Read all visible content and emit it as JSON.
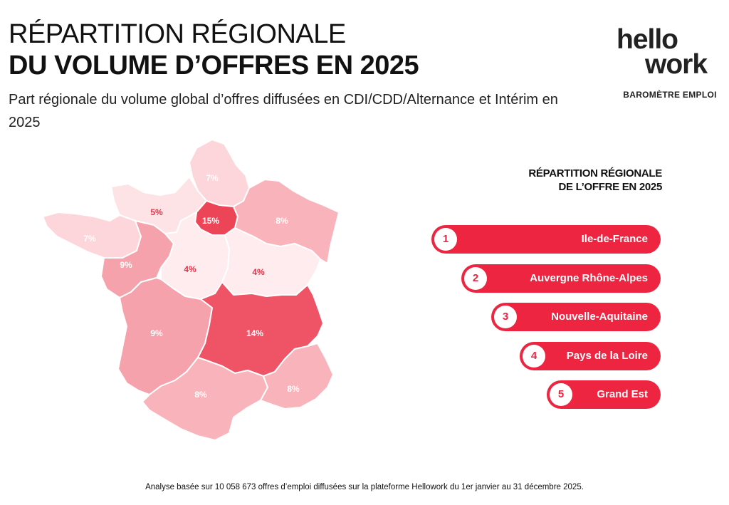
{
  "header": {
    "title_line1": "RÉPARTITION RÉGIONALE",
    "title_line2": "DU VOLUME D’OFFRES EN 2025",
    "subtitle": "Part régionale du volume global d’offres diffusées en CDI/CDD/Alternance et Intérim en 2025"
  },
  "brand": {
    "logo_line1": "hellо",
    "logo_line2": "wоrk",
    "tagline": "BAROMÈTRE EMPLOI"
  },
  "map": {
    "regions": [
      {
        "id": "hauts-de-france",
        "label": "7%",
        "value": 7,
        "color": "#fcd6da"
      },
      {
        "id": "normandie",
        "label": "5%",
        "value": 5,
        "color": "#fde3e6"
      },
      {
        "id": "ile-de-france",
        "label": "15%",
        "value": 15,
        "color": "#ec4557"
      },
      {
        "id": "grand-est",
        "label": "8%",
        "value": 8,
        "color": "#f9b3bb"
      },
      {
        "id": "bretagne",
        "label": "7%",
        "value": 7,
        "color": "#fcd6da"
      },
      {
        "id": "pays-de-la-loire",
        "label": "9%",
        "value": 9,
        "color": "#f6a2ac"
      },
      {
        "id": "centre-val-de-loire",
        "label": "4%",
        "value": 4,
        "color": "#feecee"
      },
      {
        "id": "bourgogne-franche-comte",
        "label": "4%",
        "value": 4,
        "color": "#feecee"
      },
      {
        "id": "nouvelle-aquitaine",
        "label": "9%",
        "value": 9,
        "color": "#f6a2ac"
      },
      {
        "id": "auvergne-rhone-alpes",
        "label": "14%",
        "value": 14,
        "color": "#ee5466"
      },
      {
        "id": "occitanie",
        "label": "8%",
        "value": 8,
        "color": "#f9b3bb"
      },
      {
        "id": "provence-alpes-cote-d-azur",
        "label": "8%",
        "value": 8,
        "color": "#f9b3bb"
      }
    ]
  },
  "ranking": {
    "title_line1": "RÉPARTITION RÉGIONALE",
    "title_line2": "DE L’OFFRE EN 2025",
    "items": [
      {
        "rank": "1",
        "label": "Ile-de-France"
      },
      {
        "rank": "2",
        "label": "Auvergne Rhône-Alpes"
      },
      {
        "rank": "3",
        "label": "Nouvelle-Aquitaine"
      },
      {
        "rank": "4",
        "label": "Pays de la Loire"
      },
      {
        "rank": "5",
        "label": "Grand Est"
      }
    ]
  },
  "footnote": "Analyse basée sur 10 058 673 offres d’emploi diffusées sur la plateforme Hellowork du 1er janvier au 31 décembre 2025."
}
